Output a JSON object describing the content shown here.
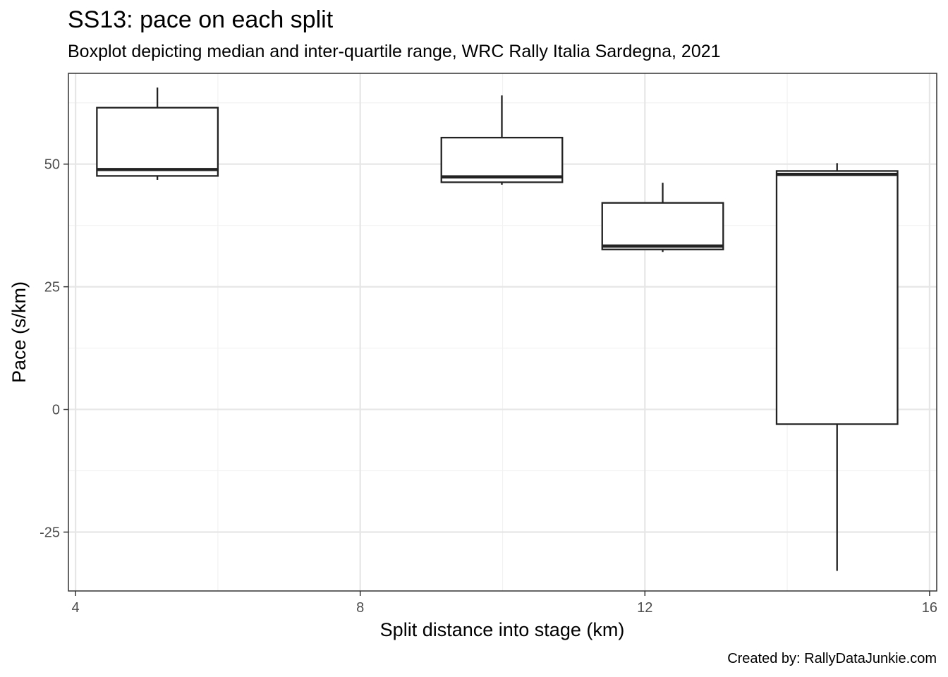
{
  "chart_data": {
    "type": "box",
    "title": "SS13: pace on each split",
    "subtitle": "Boxplot depicting median and inter-quartile range, WRC Rally Italia Sardegna, 2021",
    "caption": "Created by: RallyDataJunkie.com",
    "xlabel": "Split distance into stage (km)",
    "ylabel": "Pace (s/km)",
    "xlim": [
      3.9,
      16.1
    ],
    "ylim": [
      -37,
      68.5
    ],
    "xticks": [
      4,
      8,
      12,
      16
    ],
    "xtick_labels": [
      "4",
      "8",
      "12",
      "16"
    ],
    "yticks": [
      -25,
      0,
      25,
      50
    ],
    "ytick_labels": [
      "-25",
      "0",
      "25",
      "50"
    ],
    "x_minor_grid": [
      6,
      10,
      14
    ],
    "y_minor_grid": [
      -12.5,
      12.5,
      37.5,
      62.5
    ],
    "grid": true,
    "legend": "none",
    "box_half_width": 0.85,
    "boxes": [
      {
        "x": 5.15,
        "whisker_low": 46.8,
        "q1": 47.6,
        "median": 48.9,
        "q3": 61.5,
        "whisker_high": 65.6
      },
      {
        "x": 9.99,
        "whisker_low": 45.8,
        "q1": 46.3,
        "median": 47.4,
        "q3": 55.4,
        "whisker_high": 64.0
      },
      {
        "x": 12.25,
        "whisker_low": 32.1,
        "q1": 32.6,
        "median": 33.3,
        "q3": 42.1,
        "whisker_high": 46.2
      },
      {
        "x": 14.7,
        "whisker_low": -32.9,
        "q1": -3.0,
        "median": 47.9,
        "q3": 48.6,
        "whisker_high": 50.2
      }
    ],
    "colors": {
      "box_line": "#222222",
      "box_fill": "#ffffff",
      "grid_major": "#e6e6e6",
      "grid_minor": "#f2f2f2",
      "panel_border": "#333333",
      "tick_text": "#4d4d4d"
    }
  }
}
